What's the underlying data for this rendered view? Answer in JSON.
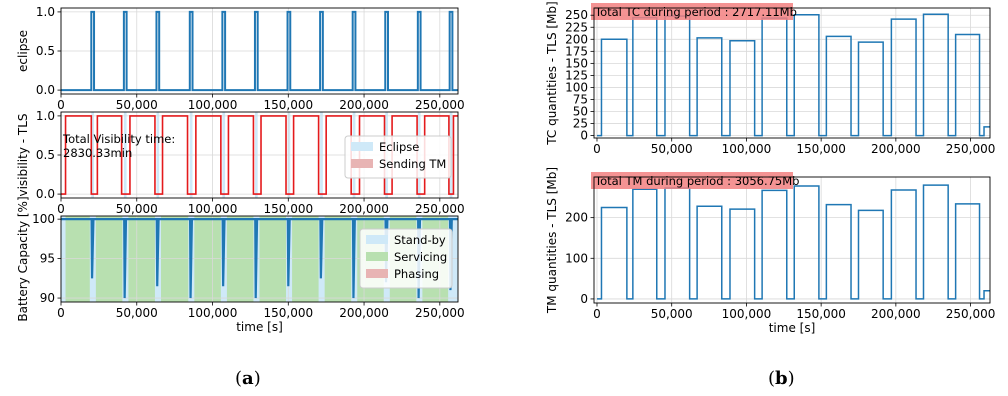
{
  "figure": {
    "captions": [
      {
        "open": "(",
        "letter": "a",
        "close": ")"
      },
      {
        "open": "(",
        "letter": "b",
        "close": ")"
      }
    ],
    "colors": {
      "blue": "#1f77b4",
      "red": "#e41a1c",
      "grid": "#d9d9d9",
      "eclipse": "#cfe9f8",
      "standby": "#cfe9f8",
      "servicing": "#b8e0b0",
      "phasing": "#e8b4b4",
      "annot_box": "#f28080"
    }
  },
  "chart_data": [
    {
      "id": "a1",
      "type": "line",
      "ylabel": "eclipse",
      "xlabel": "",
      "xlim": [
        0,
        262000
      ],
      "ylim": [
        -0.05,
        1.05
      ],
      "xticks": [
        0,
        50000,
        100000,
        150000,
        200000,
        250000
      ],
      "xticklabels": [
        "0",
        "50,000",
        "100,000",
        "150,000",
        "200,000",
        "250,000"
      ],
      "yticks": [
        0.0,
        0.5,
        1.0
      ],
      "yticklabels": [
        "0.0",
        "0.5",
        "1.0"
      ],
      "grid": true,
      "series": [
        {
          "color": "blue",
          "eclipse_starts": [
            20000,
            41500,
            63000,
            85000,
            106500,
            128000,
            149500,
            171000,
            192500,
            214000,
            235500,
            256500
          ],
          "eclipse_duration": 1800
        }
      ]
    },
    {
      "id": "a2",
      "type": "line",
      "ylabel": "visibility - TLS",
      "xlabel": "",
      "xlim": [
        0,
        262000
      ],
      "ylim": [
        -0.05,
        1.05
      ],
      "xticks": [
        0,
        50000,
        100000,
        150000,
        200000,
        250000
      ],
      "xticklabels": [
        "0",
        "50,000",
        "100,000",
        "150,000",
        "200,000",
        "250,000"
      ],
      "yticks": [
        0.0,
        0.5,
        1.0
      ],
      "yticklabels": [
        "0.0",
        "0.5",
        "1.0"
      ],
      "grid": true,
      "annotation": {
        "line1": "Total  Visibility time:",
        "line2": "2830.33min"
      },
      "legend": {
        "placement": "right",
        "entries": [
          {
            "label": "Eclipse",
            "color": "eclipse"
          },
          {
            "label": "Sending TM",
            "color": "phasing"
          }
        ]
      },
      "visibility_windows": [
        [
          3000,
          20000
        ],
        [
          24000,
          40000
        ],
        [
          45500,
          62000
        ],
        [
          67000,
          83500
        ],
        [
          89000,
          105500
        ],
        [
          110500,
          127000
        ],
        [
          132000,
          148500
        ],
        [
          153500,
          170000
        ],
        [
          175000,
          191500
        ],
        [
          197000,
          213500
        ],
        [
          218500,
          235000
        ],
        [
          240000,
          256000
        ]
      ]
    },
    {
      "id": "a3",
      "type": "area",
      "ylabel": "Battery Capacity [%]",
      "xlabel": "time [s]",
      "xlim": [
        0,
        262000
      ],
      "ylim": [
        89.5,
        100.4
      ],
      "xticks": [
        0,
        50000,
        100000,
        150000,
        200000,
        250000
      ],
      "xticklabels": [
        "0",
        "50,000",
        "100,000",
        "150,000",
        "200,000",
        "250,000"
      ],
      "yticks": [
        90,
        95,
        100
      ],
      "yticklabels": [
        "90",
        "95",
        "100"
      ],
      "grid": true,
      "legend": {
        "placement": "right",
        "entries": [
          {
            "label": "Stand-by",
            "color": "standby"
          },
          {
            "label": "Servicing",
            "color": "servicing"
          },
          {
            "label": "Phasing",
            "color": "phasing"
          }
        ]
      },
      "dips": [
        {
          "x": 20500,
          "min": 92.5
        },
        {
          "x": 42000,
          "min": 90.0
        },
        {
          "x": 63500,
          "min": 91.5
        },
        {
          "x": 85500,
          "min": 90.0
        },
        {
          "x": 107000,
          "min": 91.5
        },
        {
          "x": 128500,
          "min": 90.0
        },
        {
          "x": 150000,
          "min": 91.5
        },
        {
          "x": 171500,
          "min": 92.5
        },
        {
          "x": 193000,
          "min": 90.0
        },
        {
          "x": 214500,
          "min": 92.0
        },
        {
          "x": 236000,
          "min": 90.0
        },
        {
          "x": 257000,
          "min": 91.0
        }
      ]
    },
    {
      "id": "b1",
      "type": "line",
      "ylabel": "TC quantities - TLS  [Mb]",
      "xlabel": "",
      "xlim": [
        -2000,
        263000
      ],
      "ylim": [
        -5,
        265
      ],
      "xticks": [
        0,
        50000,
        100000,
        150000,
        200000,
        250000
      ],
      "xticklabels": [
        "0",
        "50,000",
        "100,000",
        "150,000",
        "200,000",
        "250,000"
      ],
      "yticks": [
        0,
        25,
        50,
        75,
        100,
        125,
        150,
        175,
        200,
        225,
        250
      ],
      "yticklabels": [
        "0",
        "25",
        "50",
        "75",
        "100",
        "125",
        "150",
        "175",
        "200",
        "225",
        "250"
      ],
      "grid": true,
      "annotation": {
        "text": "Total TC during period : 2717.11Mb"
      },
      "steps": [
        [
          3000,
          20000,
          200
        ],
        [
          24000,
          40000,
          245
        ],
        [
          45500,
          62000,
          248
        ],
        [
          67000,
          83500,
          203
        ],
        [
          89000,
          105500,
          197
        ],
        [
          110500,
          127000,
          244
        ],
        [
          132000,
          148500,
          251
        ],
        [
          153500,
          170000,
          206
        ],
        [
          175000,
          191500,
          194
        ],
        [
          197000,
          213500,
          242
        ],
        [
          218500,
          235000,
          252
        ],
        [
          240000,
          256000,
          210
        ]
      ],
      "tail": {
        "x": 259000,
        "value": 18
      }
    },
    {
      "id": "b2",
      "type": "line",
      "ylabel": "TM quantities - TLS  [Mb]",
      "xlabel": "time [s]",
      "xlim": [
        -2000,
        263000
      ],
      "ylim": [
        -10,
        300
      ],
      "xticks": [
        0,
        50000,
        100000,
        150000,
        200000,
        250000
      ],
      "xticklabels": [
        "0",
        "50,000",
        "100,000",
        "150,000",
        "200,000",
        "250,000"
      ],
      "yticks": [
        0,
        100,
        200
      ],
      "yticklabels": [
        "0",
        "100",
        "200"
      ],
      "grid": true,
      "annotation": {
        "text": "Total TM during period : 3056.75Mb"
      },
      "steps": [
        [
          3000,
          20000,
          225
        ],
        [
          24000,
          40000,
          270
        ],
        [
          45500,
          62000,
          273
        ],
        [
          67000,
          83500,
          228
        ],
        [
          89000,
          105500,
          221
        ],
        [
          110500,
          127000,
          267
        ],
        [
          132000,
          148500,
          278
        ],
        [
          153500,
          170000,
          232
        ],
        [
          175000,
          191500,
          218
        ],
        [
          197000,
          213500,
          268
        ],
        [
          218500,
          235000,
          280
        ],
        [
          240000,
          256000,
          234
        ]
      ],
      "tail": {
        "x": 259000,
        "value": 20
      }
    }
  ]
}
